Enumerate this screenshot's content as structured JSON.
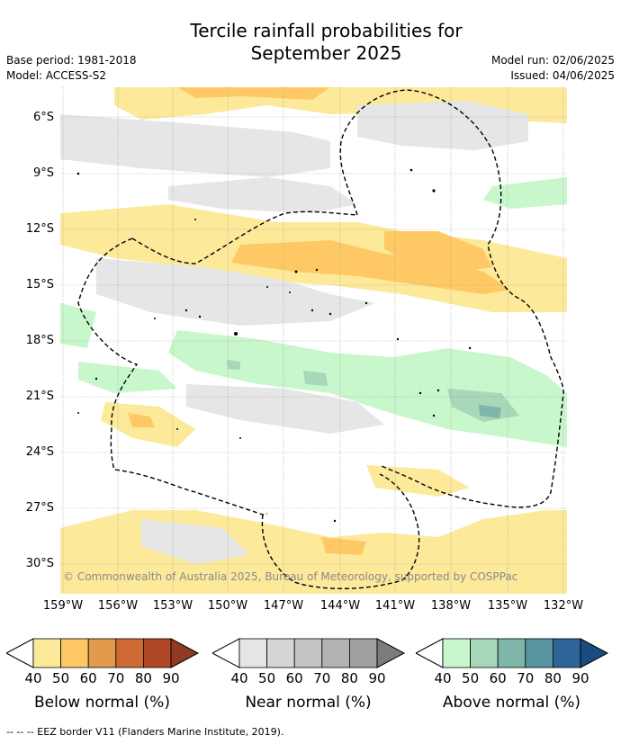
{
  "title_line1": "Tercile rainfall probabilities for",
  "title_line2": "September 2025",
  "base_period": "Base period: 1981-2018",
  "model": "Model: ACCESS-S2",
  "model_run": "Model run: 02/06/2025",
  "issued": "Issued: 04/06/2025",
  "lat_labels": [
    "6°S",
    "9°S",
    "12°S",
    "15°S",
    "18°S",
    "21°S",
    "24°S",
    "27°S",
    "30°S"
  ],
  "lon_labels": [
    "159°W",
    "156°W",
    "153°W",
    "150°W",
    "147°W",
    "144°W",
    "141°W",
    "138°W",
    "135°W",
    "132°W"
  ],
  "copyright": "© Commonwealth of Australia 2025, Bureau of Meteorology, supported by COSPPac",
  "colorbars": [
    {
      "label": "Below normal (%)",
      "ticks": [
        "40",
        "50",
        "60",
        "70",
        "80",
        "90"
      ],
      "colors": [
        "#fde99a",
        "#fec964",
        "#e39a4c",
        "#cf6a34",
        "#b04827",
        "#923b22"
      ]
    },
    {
      "label": "Near normal (%)",
      "ticks": [
        "40",
        "50",
        "60",
        "70",
        "80",
        "90"
      ],
      "colors": [
        "#e6e6e6",
        "#d6d6d6",
        "#c5c5c5",
        "#b3b3b3",
        "#a0a0a0",
        "#7c7c7c"
      ]
    },
    {
      "label": "Above normal (%)",
      "ticks": [
        "40",
        "50",
        "60",
        "70",
        "80",
        "90"
      ],
      "colors": [
        "#c8f7cb",
        "#a6d8b9",
        "#80b6aa",
        "#5a95a2",
        "#2e6598",
        "#194d82"
      ]
    }
  ],
  "eez_note": "--  --  -- EEZ border V11 (Flanders Marine Institute, 2019)."
}
